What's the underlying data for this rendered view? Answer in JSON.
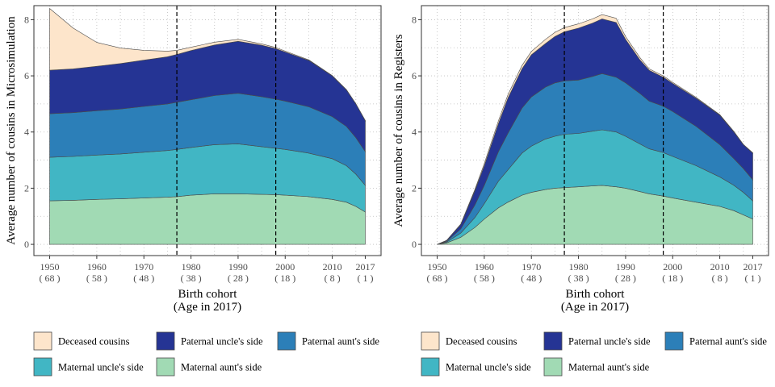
{
  "chart_data": [
    {
      "type": "area",
      "stacked": true,
      "ylabel": "Average number of cousins in Microsimulation",
      "xlabel": "Birth cohort",
      "xlabel2": "(Age in 2017)",
      "xlim": [
        1950,
        2017
      ],
      "ylim": [
        0,
        8.5
      ],
      "x_ticks": [
        {
          "value": 1950,
          "label": "1950",
          "age": "( 68 )"
        },
        {
          "value": 1960,
          "label": "1960",
          "age": "( 58 )"
        },
        {
          "value": 1970,
          "label": "1970",
          "age": "( 48 )"
        },
        {
          "value": 1980,
          "label": "1980",
          "age": "( 38 )"
        },
        {
          "value": 1990,
          "label": "1990",
          "age": "( 28 )"
        },
        {
          "value": 2000,
          "label": "2000",
          "age": "( 18 )"
        },
        {
          "value": 2010,
          "label": "2010",
          "age": "( 8 )"
        },
        {
          "value": 2017,
          "label": "2017",
          "age": "( 1 )"
        }
      ],
      "y_ticks": [
        0,
        2,
        4,
        6,
        8
      ],
      "vlines": [
        1977,
        1998
      ],
      "grid": "dotted",
      "x": [
        1950,
        1955,
        1960,
        1965,
        1970,
        1975,
        1977,
        1980,
        1985,
        1990,
        1995,
        1998,
        2000,
        2005,
        2010,
        2013,
        2015,
        2017
      ],
      "series": [
        {
          "name": "Maternal aunt's side",
          "values": [
            1.55,
            1.57,
            1.6,
            1.62,
            1.65,
            1.68,
            1.7,
            1.75,
            1.8,
            1.8,
            1.78,
            1.77,
            1.75,
            1.7,
            1.6,
            1.5,
            1.35,
            1.15
          ]
        },
        {
          "name": "Maternal uncle's side",
          "values": [
            1.55,
            1.56,
            1.58,
            1.6,
            1.63,
            1.66,
            1.68,
            1.7,
            1.75,
            1.78,
            1.7,
            1.65,
            1.63,
            1.55,
            1.45,
            1.3,
            1.15,
            0.95
          ]
        },
        {
          "name": "Paternal aunt's side",
          "values": [
            1.55,
            1.56,
            1.58,
            1.6,
            1.63,
            1.66,
            1.68,
            1.7,
            1.75,
            1.8,
            1.78,
            1.75,
            1.72,
            1.65,
            1.5,
            1.4,
            1.3,
            1.2
          ]
        },
        {
          "name": "Paternal uncle's side",
          "values": [
            1.55,
            1.56,
            1.58,
            1.62,
            1.65,
            1.68,
            1.7,
            1.75,
            1.8,
            1.85,
            1.83,
            1.8,
            1.75,
            1.65,
            1.45,
            1.3,
            1.2,
            1.1
          ]
        },
        {
          "name": "Deceased cousins",
          "values": [
            2.2,
            1.45,
            0.85,
            0.55,
            0.35,
            0.2,
            0.15,
            0.12,
            0.1,
            0.07,
            0.05,
            0.04,
            0.03,
            0.02,
            0.01,
            0.01,
            0.01,
            0.01
          ]
        }
      ]
    },
    {
      "type": "area",
      "stacked": true,
      "ylabel": "Average number of cousins in Registers",
      "xlabel": "Birth cohort",
      "xlabel2": "(Age in 2017)",
      "xlim": [
        1950,
        2017
      ],
      "ylim": [
        0,
        8.5
      ],
      "x_ticks": [
        {
          "value": 1950,
          "label": "1950",
          "age": "( 68 )"
        },
        {
          "value": 1960,
          "label": "1960",
          "age": "( 58 )"
        },
        {
          "value": 1970,
          "label": "1970",
          "age": "( 48 )"
        },
        {
          "value": 1980,
          "label": "1980",
          "age": "( 38 )"
        },
        {
          "value": 1990,
          "label": "1990",
          "age": "( 28 )"
        },
        {
          "value": 2000,
          "label": "2000",
          "age": "( 18 )"
        },
        {
          "value": 2010,
          "label": "2010",
          "age": "( 8 )"
        },
        {
          "value": 2017,
          "label": "2017",
          "age": "( 1 )"
        }
      ],
      "y_ticks": [
        0,
        2,
        4,
        6,
        8
      ],
      "vlines": [
        1977,
        1998
      ],
      "grid": "dotted",
      "x": [
        1950,
        1952,
        1955,
        1958,
        1960,
        1963,
        1965,
        1968,
        1970,
        1973,
        1975,
        1977,
        1980,
        1983,
        1985,
        1988,
        1990,
        1993,
        1995,
        1998,
        2000,
        2005,
        2010,
        2013,
        2015,
        2017
      ],
      "series": [
        {
          "name": "Maternal aunt's side",
          "values": [
            0.0,
            0.05,
            0.25,
            0.6,
            0.9,
            1.3,
            1.5,
            1.75,
            1.85,
            1.95,
            2.0,
            2.02,
            2.05,
            2.08,
            2.1,
            2.05,
            2.0,
            1.88,
            1.8,
            1.72,
            1.65,
            1.5,
            1.35,
            1.2,
            1.05,
            0.9
          ]
        },
        {
          "name": "Maternal uncle's side",
          "values": [
            0.0,
            0.03,
            0.15,
            0.35,
            0.55,
            0.95,
            1.15,
            1.5,
            1.65,
            1.8,
            1.85,
            1.9,
            1.9,
            1.95,
            1.98,
            1.95,
            1.85,
            1.7,
            1.6,
            1.55,
            1.48,
            1.3,
            1.05,
            0.9,
            0.8,
            0.65
          ]
        },
        {
          "name": "Paternal aunt's side",
          "values": [
            0.0,
            0.03,
            0.15,
            0.45,
            0.65,
            1.05,
            1.3,
            1.6,
            1.75,
            1.85,
            1.9,
            1.9,
            1.9,
            1.95,
            2.0,
            1.95,
            1.9,
            1.8,
            1.7,
            1.65,
            1.6,
            1.4,
            1.15,
            0.95,
            0.85,
            0.75
          ]
        },
        {
          "name": "Paternal uncle's side",
          "values": [
            0.0,
            0.03,
            0.15,
            0.5,
            0.7,
            1.0,
            1.25,
            1.4,
            1.5,
            1.55,
            1.65,
            1.75,
            1.85,
            1.9,
            1.95,
            1.95,
            1.55,
            1.2,
            1.1,
            1.03,
            1.0,
            1.0,
            1.05,
            0.95,
            0.85,
            0.95
          ]
        },
        {
          "name": "Deceased cousins",
          "values": [
            0.0,
            0.0,
            0.02,
            0.05,
            0.08,
            0.1,
            0.12,
            0.12,
            0.12,
            0.15,
            0.15,
            0.15,
            0.15,
            0.15,
            0.15,
            0.15,
            0.1,
            0.08,
            0.05,
            0.05,
            0.04,
            0.03,
            0.02,
            0.02,
            0.01,
            0.01
          ]
        }
      ]
    }
  ],
  "legend": [
    {
      "name": "Deceased cousins",
      "color": "#fde5cb"
    },
    {
      "name": "Paternal uncle's side",
      "color": "#253494"
    },
    {
      "name": "Paternal aunt's side",
      "color": "#2c7fb8"
    },
    {
      "name": "Maternal uncle's side",
      "color": "#41b6c4"
    },
    {
      "name": "Maternal aunt's side",
      "color": "#a1dab4"
    }
  ]
}
